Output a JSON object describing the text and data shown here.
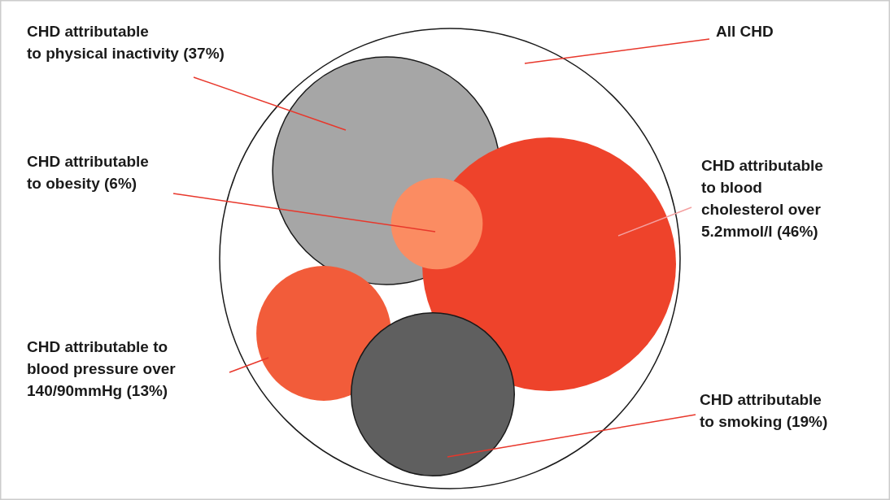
{
  "chart_data": {
    "type": "other",
    "categories": [
      "All CHD",
      "CHD attributable to physical inactivity",
      "CHD attributable to blood cholesterol over 5.2mmol/l",
      "CHD attributable to blood pressure over 140/90mmHg",
      "CHD attributable to obesity",
      "CHD attributable to smoking"
    ],
    "values": [
      null,
      37,
      46,
      13,
      6,
      19
    ],
    "value_labels": [
      null,
      "(37%)",
      "(46%)",
      "(13%)",
      "(6%)",
      "(19%)"
    ],
    "colors": [
      "#ffffff",
      "#a6a6a6",
      "#ee432b",
      "#f25c3a",
      "#fb8c62",
      "#5f5f5f"
    ]
  }
}
